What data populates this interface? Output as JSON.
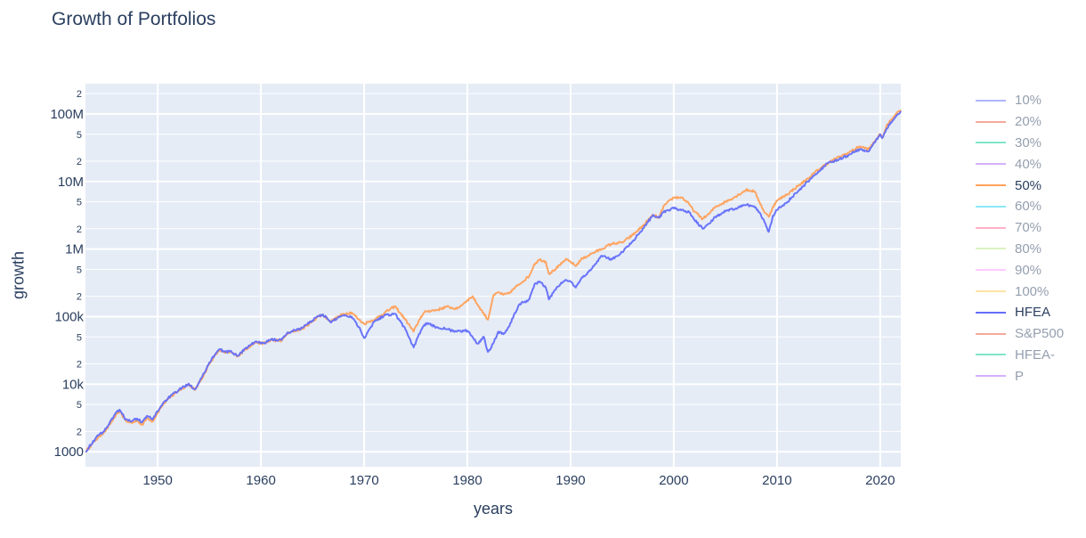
{
  "chart_data": {
    "type": "line",
    "title": "Growth of Portfolios",
    "xlabel": "years",
    "ylabel": "growth",
    "y_scale": "log",
    "xlim": [
      1943,
      2022
    ],
    "ylim": [
      600,
      280000000
    ],
    "x_ticks": [
      "1950",
      "1960",
      "1970",
      "1980",
      "1990",
      "2000",
      "2010",
      "2020"
    ],
    "y_major_ticks": [
      {
        "value": 1000,
        "label": "1000"
      },
      {
        "value": 10000,
        "label": "10k"
      },
      {
        "value": 100000,
        "label": "100k"
      },
      {
        "value": 1000000,
        "label": "1M"
      },
      {
        "value": 10000000,
        "label": "10M"
      },
      {
        "value": 100000000,
        "label": "100M"
      }
    ],
    "y_minor_ticks": [
      {
        "value": 2000,
        "label": "2"
      },
      {
        "value": 5000,
        "label": "5"
      },
      {
        "value": 20000,
        "label": "2"
      },
      {
        "value": 50000,
        "label": "5"
      },
      {
        "value": 200000,
        "label": "2"
      },
      {
        "value": 500000,
        "label": "5"
      },
      {
        "value": 2000000,
        "label": "2"
      },
      {
        "value": 5000000,
        "label": "5"
      },
      {
        "value": 20000000,
        "label": "2"
      },
      {
        "value": 50000000,
        "label": "5"
      },
      {
        "value": 200000000,
        "label": "2"
      }
    ],
    "grid": true,
    "legend_position": "right",
    "legend": [
      {
        "name": "10%",
        "color": "#636efa",
        "visible": false
      },
      {
        "name": "20%",
        "color": "#EF553B",
        "visible": false
      },
      {
        "name": "30%",
        "color": "#00cc96",
        "visible": false
      },
      {
        "name": "40%",
        "color": "#ab63fa",
        "visible": false
      },
      {
        "name": "50%",
        "color": "#FFA15A",
        "visible": true
      },
      {
        "name": "60%",
        "color": "#19d3f3",
        "visible": false
      },
      {
        "name": "70%",
        "color": "#FF6692",
        "visible": false
      },
      {
        "name": "80%",
        "color": "#B6E880",
        "visible": false
      },
      {
        "name": "90%",
        "color": "#FF97FF",
        "visible": false
      },
      {
        "name": "100%",
        "color": "#FECB52",
        "visible": false
      },
      {
        "name": "HFEA",
        "color": "#636efa",
        "visible": true
      },
      {
        "name": "S&P500",
        "color": "#EF553B",
        "visible": false
      },
      {
        "name": "HFEA-",
        "color": "#00cc96",
        "visible": false
      },
      {
        "name": "P",
        "color": "#ab63fa",
        "visible": false
      }
    ],
    "series": [
      {
        "name": "50%",
        "color": "#FFA15A",
        "x": [
          1943.0,
          1944.0,
          1945.0,
          1945.8,
          1946.3,
          1946.9,
          1947.5,
          1948.0,
          1948.5,
          1949.0,
          1949.5,
          1950.0,
          1950.5,
          1951.0,
          1952.0,
          1953.0,
          1953.6,
          1954.5,
          1955.0,
          1955.5,
          1956.0,
          1956.5,
          1957.0,
          1957.8,
          1958.5,
          1959.0,
          1959.5,
          1960.0,
          1960.5,
          1961.0,
          1962.0,
          1962.5,
          1963.0,
          1964.0,
          1965.0,
          1965.5,
          1966.0,
          1966.8,
          1967.5,
          1968.0,
          1968.8,
          1969.5,
          1970.0,
          1970.5,
          1971.0,
          1972.0,
          1973.0,
          1974.0,
          1974.8,
          1975.5,
          1976.0,
          1977.0,
          1978.0,
          1979.0,
          1980.0,
          1980.5,
          1981.0,
          1982.0,
          1982.5,
          1983.0,
          1983.5,
          1984.0,
          1985.0,
          1986.0,
          1986.5,
          1987.0,
          1987.6,
          1987.9,
          1988.5,
          1989.0,
          1989.5,
          1990.0,
          1990.5,
          1991.0,
          1992.0,
          1993.0,
          1994.0,
          1995.0,
          1996.0,
          1997.0,
          1998.0,
          1998.6,
          1999.0,
          2000.0,
          2000.8,
          2001.5,
          2002.0,
          2002.8,
          2003.5,
          2004.0,
          2005.0,
          2006.0,
          2007.0,
          2007.8,
          2008.3,
          2008.8,
          2009.2,
          2009.6,
          2010.0,
          2011.0,
          2012.0,
          2013.0,
          2014.0,
          2015.0,
          2016.0,
          2017.0,
          2018.0,
          2018.9,
          2019.5,
          2020.0,
          2020.2,
          2020.6,
          2021.0,
          2021.5,
          2022.0
        ],
        "y": [
          1000,
          1500,
          2100,
          3200,
          4000,
          2900,
          2650,
          2900,
          2500,
          3200,
          2800,
          3800,
          5000,
          6000,
          8000,
          10000,
          8200,
          14000,
          20000,
          26000,
          32000,
          29000,
          30000,
          26000,
          33000,
          37000,
          42000,
          40000,
          41000,
          45000,
          44000,
          55000,
          60000,
          66000,
          85000,
          100000,
          105000,
          85000,
          100000,
          110000,
          115000,
          90000,
          78000,
          85000,
          90000,
          115000,
          142000,
          90000,
          60000,
          100000,
          120000,
          125000,
          140000,
          130000,
          175000,
          200000,
          150000,
          90000,
          200000,
          230000,
          210000,
          220000,
          300000,
          400000,
          600000,
          700000,
          650000,
          430000,
          500000,
          580000,
          700000,
          650000,
          560000,
          700000,
          850000,
          1000000,
          1200000,
          1250000,
          1600000,
          2200000,
          3200000,
          2900000,
          4300000,
          5800000,
          5800000,
          4600000,
          3600000,
          2800000,
          3400000,
          4200000,
          5000000,
          6000000,
          7500000,
          7200000,
          5000000,
          3500000,
          3000000,
          4200000,
          5200000,
          6500000,
          8500000,
          11000000,
          15000000,
          19000000,
          23000000,
          27000000,
          33000000,
          30000000,
          40000000,
          50000000,
          44000000,
          65000000,
          80000000,
          100000000,
          115000000
        ]
      },
      {
        "name": "HFEA",
        "color": "#636efa",
        "x": [
          1943.0,
          1944.0,
          1945.0,
          1945.8,
          1946.3,
          1946.9,
          1947.5,
          1948.0,
          1948.5,
          1949.0,
          1949.5,
          1950.0,
          1950.5,
          1951.0,
          1952.0,
          1953.0,
          1953.6,
          1954.5,
          1955.0,
          1955.5,
          1956.0,
          1956.5,
          1957.0,
          1957.8,
          1958.5,
          1959.0,
          1959.5,
          1960.0,
          1960.5,
          1961.0,
          1962.0,
          1962.5,
          1963.0,
          1964.0,
          1965.0,
          1965.5,
          1966.0,
          1966.8,
          1967.5,
          1968.0,
          1968.8,
          1969.5,
          1970.0,
          1970.5,
          1971.0,
          1972.0,
          1973.0,
          1974.0,
          1974.8,
          1975.5,
          1976.0,
          1977.0,
          1978.0,
          1979.0,
          1980.0,
          1980.5,
          1981.0,
          1981.6,
          1982.0,
          1982.5,
          1983.0,
          1983.5,
          1984.0,
          1985.0,
          1986.0,
          1986.5,
          1987.0,
          1987.6,
          1987.9,
          1988.5,
          1989.0,
          1989.5,
          1990.0,
          1990.5,
          1991.0,
          1992.0,
          1993.0,
          1994.0,
          1995.0,
          1996.0,
          1997.0,
          1998.0,
          1998.6,
          1999.0,
          2000.0,
          2000.8,
          2001.5,
          2002.0,
          2002.8,
          2003.5,
          2004.0,
          2005.0,
          2006.0,
          2007.0,
          2007.8,
          2008.3,
          2008.8,
          2009.2,
          2009.6,
          2010.0,
          2011.0,
          2012.0,
          2013.0,
          2014.0,
          2015.0,
          2016.0,
          2017.0,
          2018.0,
          2018.9,
          2019.5,
          2020.0,
          2020.2,
          2020.6,
          2021.0,
          2021.5,
          2022.0
        ],
        "y": [
          1000,
          1600,
          2200,
          3500,
          4200,
          3000,
          2850,
          3100,
          2750,
          3400,
          3000,
          4000,
          5200,
          6200,
          8100,
          10200,
          8400,
          14500,
          21000,
          27000,
          33000,
          30000,
          30500,
          26500,
          34000,
          38000,
          43000,
          40000,
          41500,
          46000,
          45000,
          56000,
          61000,
          68000,
          88000,
          102000,
          108000,
          82000,
          98000,
          105000,
          100000,
          70000,
          48000,
          65000,
          85000,
          105000,
          110000,
          65000,
          35000,
          62000,
          80000,
          70000,
          65000,
          60000,
          62000,
          50000,
          40000,
          50000,
          30000,
          40000,
          60000,
          55000,
          70000,
          150000,
          180000,
          300000,
          330000,
          270000,
          180000,
          250000,
          300000,
          350000,
          330000,
          270000,
          360000,
          500000,
          800000,
          700000,
          900000,
          1300000,
          2000000,
          3200000,
          2900000,
          3500000,
          4000000,
          3800000,
          3500000,
          2700000,
          2000000,
          2400000,
          3000000,
          3600000,
          4000000,
          4500000,
          4300000,
          3500000,
          2500000,
          1800000,
          3100000,
          3800000,
          5000000,
          7000000,
          10000000,
          14000000,
          19000000,
          21000000,
          25000000,
          30000000,
          28000000,
          38000000,
          50000000,
          44000000,
          60000000,
          75000000,
          90000000,
          110000000
        ]
      }
    ]
  }
}
